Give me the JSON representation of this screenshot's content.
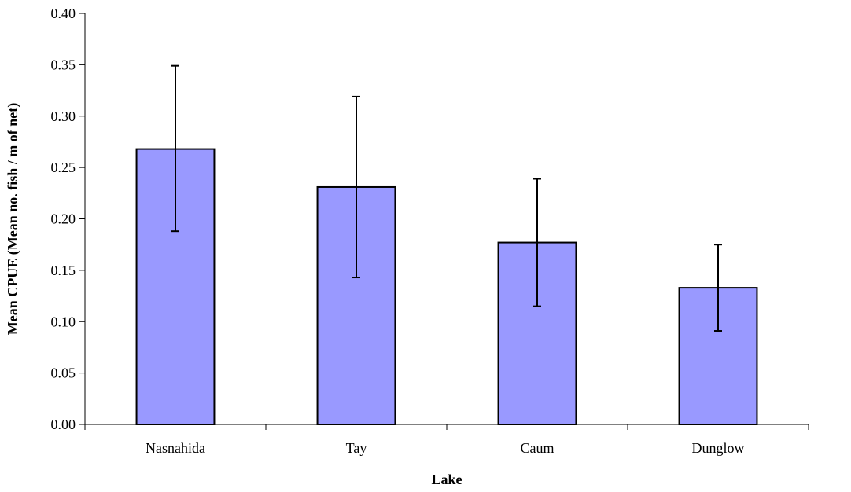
{
  "chart_data": {
    "type": "bar",
    "title": "",
    "xlabel": "Lake",
    "ylabel": "Mean CPUE (Mean no. fish / m of net)",
    "categories": [
      "Nasnahida",
      "Tay",
      "Caum",
      "Dunglow"
    ],
    "values": [
      0.268,
      0.231,
      0.177,
      0.133
    ],
    "error_low": [
      0.188,
      0.143,
      0.115,
      0.091
    ],
    "error_high": [
      0.349,
      0.319,
      0.239,
      0.175
    ],
    "ylim": [
      0,
      0.4
    ],
    "yticks": [
      "0.00",
      "0.05",
      "0.10",
      "0.15",
      "0.20",
      "0.25",
      "0.30",
      "0.35",
      "0.40"
    ],
    "grid": false,
    "legend": "none",
    "bar_color": "#9999ff",
    "bar_edge_color": "#000000"
  }
}
